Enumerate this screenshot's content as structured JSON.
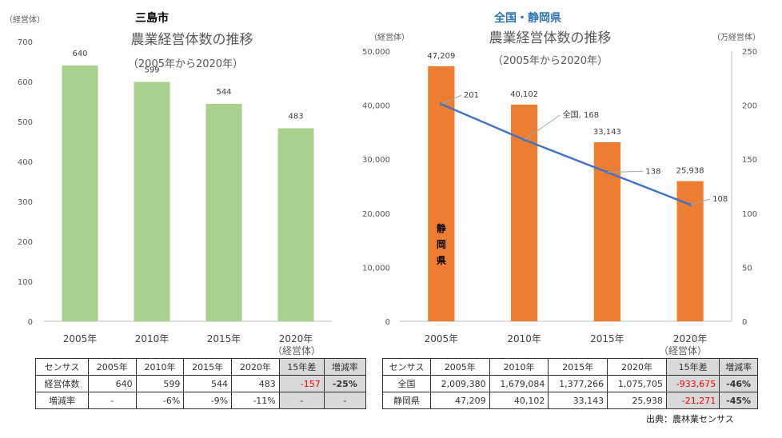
{
  "chart_data": [
    {
      "type": "bar",
      "region_title": "三島市",
      "title": "農業経営体数の推移",
      "subtitle": "（2005年から2020年）",
      "ylabel": "（経営体）",
      "ylim": [
        0,
        700
      ],
      "yticks": [
        "0",
        "100",
        "200",
        "300",
        "400",
        "500",
        "600",
        "700"
      ],
      "categories": [
        "2005年",
        "2010年",
        "2015年",
        "2020年"
      ],
      "values": [
        640,
        599,
        544,
        483
      ],
      "value_labels": [
        "640",
        "599",
        "544",
        "483"
      ],
      "category_note": "（経営体）",
      "bar_color": "#a9d18e",
      "grid": false
    },
    {
      "type": "bar+line",
      "region_title": "全国・静岡県",
      "title": "農業経営体数の推移",
      "subtitle": "（2005年から2020年）",
      "ylabel_left": "（経営体）",
      "ylabel_right": "（万経営体）",
      "ylim_left": [
        0,
        50000
      ],
      "ylim_right": [
        0,
        250
      ],
      "yticks_left": [
        "0",
        "10,000",
        "20,000",
        "30,000",
        "40,000",
        "50,000"
      ],
      "yticks_right": [
        "0",
        "50",
        "100",
        "150",
        "200",
        "250"
      ],
      "categories": [
        "2005年",
        "2010年",
        "2015年",
        "2020年"
      ],
      "category_note": "（経営体）",
      "series": [
        {
          "name": "静岡県",
          "name_chars": [
            "静",
            "岡",
            "県"
          ],
          "type": "bar",
          "axis": "left",
          "values": [
            47209,
            40102,
            33143,
            25938
          ],
          "value_labels": [
            "47,209",
            "40,102",
            "33,143",
            "25,938"
          ],
          "color": "#ed7d31"
        },
        {
          "name": "全国",
          "type": "line",
          "axis": "right",
          "values": [
            201,
            168,
            138,
            108
          ],
          "value_labels": [
            "201",
            "全国, 168",
            "138",
            "108"
          ],
          "color": "#4472c4"
        }
      ],
      "grid": false
    }
  ],
  "tables": {
    "left": {
      "headers": [
        "センサス",
        "2005年",
        "2010年",
        "2015年",
        "2020年",
        "15年差",
        "増減率"
      ],
      "rows": [
        [
          "経営体数",
          "640",
          "599",
          "544",
          "483",
          "-157",
          "-25%"
        ],
        [
          "増減率",
          "-",
          "-6%",
          "-9%",
          "-11%",
          "-",
          "-"
        ]
      ]
    },
    "right": {
      "headers": [
        "センサス",
        "2005年",
        "2010年",
        "2015年",
        "2020年",
        "15年差",
        "増減率"
      ],
      "rows": [
        [
          "全国",
          "2,009,380",
          "1,679,084",
          "1,377,266",
          "1,075,705",
          "-933,675",
          "-46%"
        ],
        [
          "静岡県",
          "47,209",
          "40,102",
          "33,143",
          "25,938",
          "-21,271",
          "-45%"
        ]
      ]
    }
  },
  "source": "出典：農林業センサス"
}
